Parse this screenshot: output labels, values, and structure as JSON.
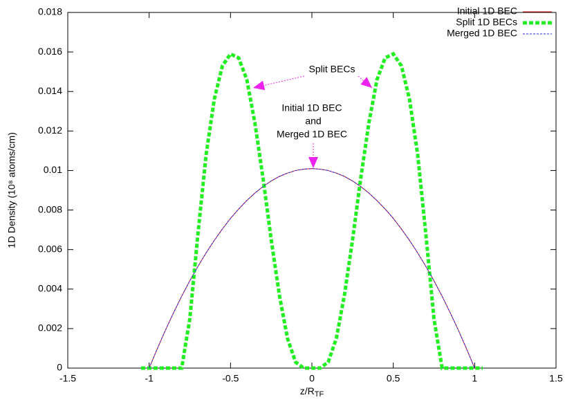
{
  "chart_data": {
    "type": "line",
    "xlabel": {
      "text": "z/R",
      "subscript": "TF"
    },
    "ylabel": "1D Density (10⁸ atoms/cm)",
    "x": [
      -1.05,
      -1.0,
      -0.95,
      -0.9,
      -0.85,
      -0.8,
      -0.75,
      -0.7,
      -0.65,
      -0.6,
      -0.55,
      -0.5,
      -0.45,
      -0.4,
      -0.35,
      -0.3,
      -0.25,
      -0.2,
      -0.15,
      -0.1,
      -0.05,
      0,
      0.05,
      0.1,
      0.15,
      0.2,
      0.25,
      0.3,
      0.35,
      0.4,
      0.45,
      0.5,
      0.55,
      0.6,
      0.65,
      0.7,
      0.75,
      0.8,
      0.85,
      0.9,
      0.95,
      1.0,
      1.05
    ],
    "series": [
      {
        "name": "Initial 1D BEC",
        "color": "#e41a1c",
        "dash": "none",
        "width": 1,
        "values": [
          null,
          0,
          0.00098,
          0.00192,
          0.0028,
          0.00364,
          0.00442,
          0.00515,
          0.00583,
          0.00646,
          0.00704,
          0.00758,
          0.00805,
          0.00848,
          0.00886,
          0.00919,
          0.00947,
          0.0097,
          0.00987,
          0.01,
          0.01007,
          0.0101,
          0.01007,
          0.01,
          0.00987,
          0.0097,
          0.00947,
          0.00919,
          0.00886,
          0.00848,
          0.00805,
          0.00758,
          0.00704,
          0.00646,
          0.00583,
          0.00515,
          0.00442,
          0.00364,
          0.0028,
          0.00192,
          0.00098,
          0,
          null
        ]
      },
      {
        "name": "Split 1D BECs",
        "color": "#22ee22",
        "dash": "6,3",
        "width": 5,
        "values": [
          0,
          0,
          0,
          0,
          0,
          0,
          0.0025,
          0.0068,
          0.0108,
          0.0136,
          0.0153,
          0.0159,
          0.0157,
          0.0146,
          0.0124,
          0.0096,
          0.0065,
          0.0037,
          0.0015,
          0.0003,
          0,
          0,
          0,
          0.0003,
          0.0015,
          0.0037,
          0.0065,
          0.0096,
          0.0124,
          0.0146,
          0.0157,
          0.0159,
          0.0153,
          0.0136,
          0.0108,
          0.0068,
          0.0025,
          0,
          0,
          0,
          0,
          0,
          0
        ]
      },
      {
        "name": "Merged 1D BEC",
        "color": "#2222ee",
        "dash": "3,2",
        "width": 1,
        "values": [
          null,
          0,
          0.00098,
          0.00192,
          0.0028,
          0.00364,
          0.00442,
          0.00515,
          0.00583,
          0.00646,
          0.00704,
          0.00758,
          0.00805,
          0.00848,
          0.00886,
          0.00919,
          0.00947,
          0.0097,
          0.00987,
          0.01,
          0.01007,
          0.0101,
          0.01007,
          0.01,
          0.00987,
          0.0097,
          0.00947,
          0.00919,
          0.00886,
          0.00848,
          0.00805,
          0.00758,
          0.00704,
          0.00646,
          0.00583,
          0.00515,
          0.00442,
          0.00364,
          0.0028,
          0.00192,
          0.00098,
          0,
          null
        ]
      }
    ],
    "xlim": [
      -1.5,
      1.5
    ],
    "xticks": [
      -1.5,
      -1,
      -0.5,
      0,
      0.5,
      1,
      1.5
    ],
    "ylim": [
      0,
      0.018
    ],
    "yticks": [
      0,
      0.002,
      0.004,
      0.006,
      0.008,
      0.01,
      0.012,
      0.014,
      0.016,
      0.018
    ],
    "legend": "top-right",
    "annotations": {
      "split": {
        "text": "Split BECs",
        "color": "#22ee22"
      },
      "initial": {
        "text": "Initial 1D BEC",
        "color": "#e41a1c"
      },
      "and": {
        "text": "and",
        "color": "#000000"
      },
      "merged": {
        "text": "Merged 1D BEC",
        "color": "#2222ee"
      },
      "arrow_color": "#ee22ee"
    }
  }
}
